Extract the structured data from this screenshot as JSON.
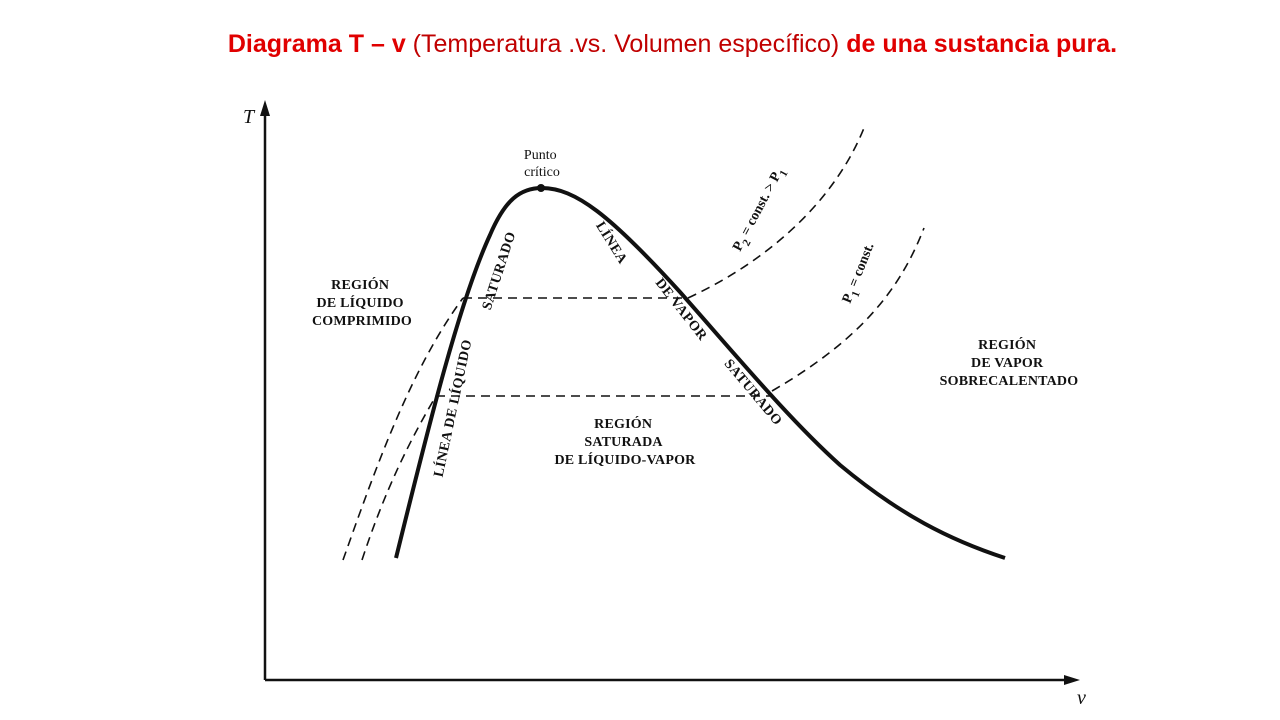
{
  "slide": {
    "title": {
      "part1": "Diagrama T – v",
      "part2": " (Temperatura .vs. Volumen específico) ",
      "part3": "de una sustancia pura.",
      "bold_color": "#e00000",
      "normal_color": "#c00000"
    }
  },
  "diagram": {
    "axes": {
      "y_label": "T",
      "x_label": "v"
    },
    "critical_point": {
      "line1": "Punto",
      "line2": "crítico"
    },
    "regions": {
      "compressed_liquid": [
        "REGIÓN",
        "DE LÍQUIDO",
        "COMPRIMIDO"
      ],
      "saturated_mixture": [
        "REGIÓN",
        "SATURADA",
        "DE LÍQUIDO-VAPOR"
      ],
      "superheated_vapor": [
        "REGIÓN",
        "DE VAPOR",
        "SOBRECALENTADO"
      ]
    },
    "saturated_liquid_line": {
      "part1": "LÍNEA DE LÍQUIDO",
      "part2": "SATURADO"
    },
    "saturated_vapor_line": {
      "part1": "LÍNEA",
      "part2": "DE VAPOR",
      "part3": "SATURADO"
    },
    "isobars": {
      "p2": {
        "sym": "P",
        "sub": "2",
        "rest": " = const. > P",
        "sub2": "1"
      },
      "p1": {
        "sym": "P",
        "sub": "1",
        "rest": " = const."
      }
    },
    "colors": {
      "line": "#111111"
    }
  }
}
